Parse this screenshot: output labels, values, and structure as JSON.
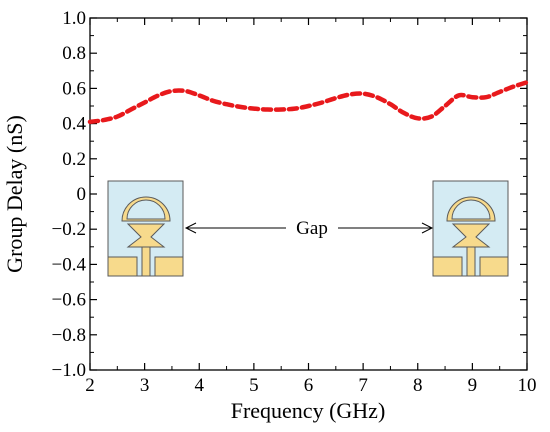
{
  "chart_data": {
    "type": "line",
    "title": "",
    "xlabel": "Frequency (GHz)",
    "ylabel": "Group Delay (nS)",
    "xlim": [
      2,
      10
    ],
    "ylim": [
      -1.0,
      1.0
    ],
    "x_ticks": [
      2,
      3,
      4,
      5,
      6,
      7,
      8,
      9,
      10
    ],
    "x_tick_labels": [
      "2",
      "3",
      "4",
      "5",
      "6",
      "7",
      "8",
      "9",
      "10"
    ],
    "y_ticks": [
      -1.0,
      -0.8,
      -0.6,
      -0.4,
      -0.2,
      0,
      0.2,
      0.4,
      0.6,
      0.8,
      1.0
    ],
    "y_tick_labels": [
      "−1.0",
      "−0.8",
      "−0.6",
      "−0.4",
      "−0.2",
      "0",
      "0.2",
      "0.4",
      "0.6",
      "0.8",
      "1.0"
    ],
    "grid": false,
    "series": [
      {
        "color": "#e8191c",
        "style": "dashed",
        "x": [
          2.0,
          2.25,
          2.5,
          2.75,
          3.0,
          3.25,
          3.5,
          3.75,
          4.0,
          4.25,
          4.5,
          4.75,
          5.0,
          5.25,
          5.5,
          5.75,
          6.0,
          6.25,
          6.5,
          6.75,
          7.0,
          7.25,
          7.5,
          7.75,
          8.0,
          8.25,
          8.5,
          8.75,
          9.0,
          9.25,
          9.5,
          9.75,
          10.0
        ],
        "y": [
          0.41,
          0.42,
          0.44,
          0.48,
          0.52,
          0.56,
          0.585,
          0.585,
          0.56,
          0.53,
          0.51,
          0.495,
          0.485,
          0.48,
          0.48,
          0.485,
          0.5,
          0.52,
          0.545,
          0.565,
          0.57,
          0.55,
          0.51,
          0.46,
          0.43,
          0.44,
          0.5,
          0.56,
          0.55,
          0.55,
          0.58,
          0.61,
          0.635
        ]
      }
    ],
    "annotations": [
      {
        "text": "Gap",
        "arrow": "double-headed"
      }
    ],
    "inset_colors": {
      "substrate": "#d4ebf3",
      "copper": "#f7da8c",
      "outline": "#5a5a5a"
    }
  }
}
